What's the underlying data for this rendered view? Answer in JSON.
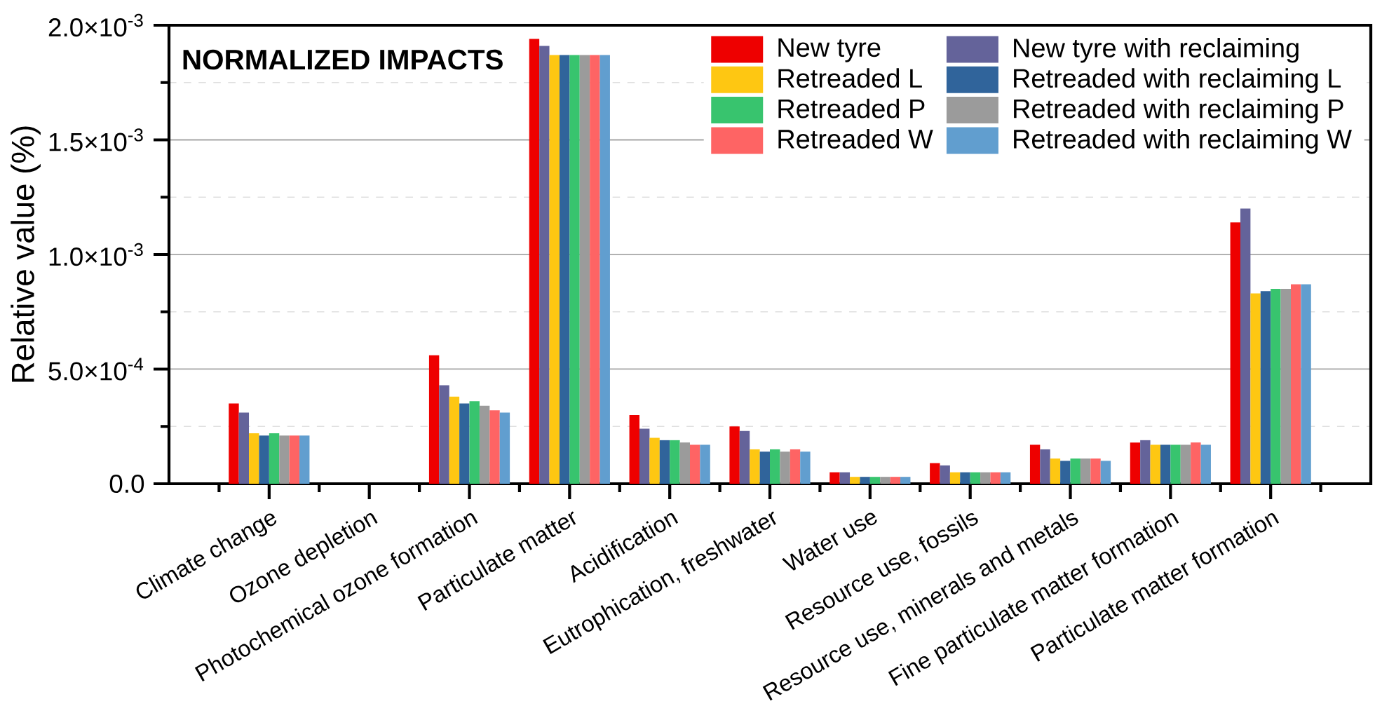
{
  "chart_data": {
    "type": "bar",
    "title": "NORMALIZED IMPACTS",
    "ylabel": "Relative value (%)",
    "categories": [
      "Climate change",
      "Ozone depletion",
      "Photochemical ozone formation",
      "Particulate matter",
      "Acidification",
      "Eutrophication, freshwater",
      "Water use",
      "Resource use, fossils",
      "Resource use, minerals and metals",
      "Fine particulate matter formation",
      "Particulate matter formation"
    ],
    "series": [
      {
        "name": "New tyre",
        "color": "#ee0000",
        "values": [
          0.00035,
          null,
          0.00056,
          0.00194,
          0.0003,
          0.00025,
          5e-05,
          9e-05,
          0.00017,
          0.00018,
          0.00114
        ]
      },
      {
        "name": "New tyre with reclaiming",
        "color": "#64639a",
        "values": [
          0.00031,
          null,
          0.00043,
          0.00191,
          0.00024,
          0.00023,
          5e-05,
          8e-05,
          0.00015,
          0.00019,
          0.0012
        ]
      },
      {
        "name": "Retreaded L",
        "color": "#fec712",
        "values": [
          0.00022,
          null,
          0.00038,
          0.00187,
          0.0002,
          0.00015,
          3e-05,
          5e-05,
          0.00011,
          0.00017,
          0.00083
        ]
      },
      {
        "name": "Retreaded with reclaiming L",
        "color": "#30649b",
        "values": [
          0.00021,
          null,
          0.00035,
          0.00187,
          0.00019,
          0.00014,
          3e-05,
          5e-05,
          0.0001,
          0.00017,
          0.00084
        ]
      },
      {
        "name": "Retreaded P",
        "color": "#38c46e",
        "values": [
          0.00022,
          null,
          0.00036,
          0.00187,
          0.00019,
          0.00015,
          3e-05,
          5e-05,
          0.00011,
          0.00017,
          0.00085
        ]
      },
      {
        "name": "Retreaded with reclaiming P",
        "color": "#9b9b9b",
        "values": [
          0.00021,
          null,
          0.00034,
          0.00187,
          0.00018,
          0.00014,
          3e-05,
          5e-05,
          0.00011,
          0.00017,
          0.00085
        ]
      },
      {
        "name": "Retreaded W",
        "color": "#fe6464",
        "values": [
          0.00021,
          null,
          0.00032,
          0.00187,
          0.00017,
          0.00015,
          3e-05,
          5e-05,
          0.00011,
          0.00018,
          0.00087
        ]
      },
      {
        "name": "Retreaded with reclaiming W",
        "color": "#619ecf",
        "values": [
          0.00021,
          null,
          0.00031,
          0.00187,
          0.00017,
          0.00014,
          3e-05,
          5e-05,
          0.0001,
          0.00017,
          0.00087
        ]
      }
    ],
    "ylim": [
      0,
      0.002
    ],
    "yticks": [
      {
        "value": 0,
        "label": "0.0"
      },
      {
        "value": 0.0005,
        "label": "5.0×10$^{-4}$"
      },
      {
        "value": 0.001,
        "label": "1.0×10$^{-3}$"
      },
      {
        "value": 0.0015,
        "label": "1.5×10$^{-3}$"
      },
      {
        "value": 0.002,
        "label": "2.0×10$^{-3}$"
      }
    ],
    "grid": "y",
    "legend": "top right"
  }
}
